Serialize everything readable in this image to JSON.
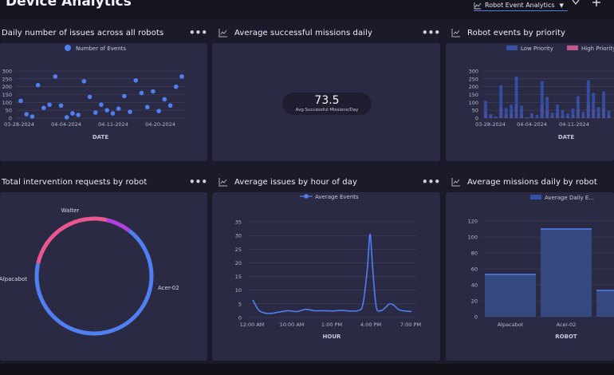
{
  "header": {
    "title": "Device Analytics",
    "dashboard_select": "Robot Event Analytics",
    "icons": {
      "dashboard": "line-chart-icon",
      "chevron": "chevron-down-icon",
      "add": "plus-icon"
    }
  },
  "panels": [
    {
      "id": "daily-issues",
      "title": "Daily number of issues across all robots",
      "more": "•••"
    },
    {
      "id": "avg-missions",
      "title": "Average successful missions daily",
      "more": "•••"
    },
    {
      "id": "events-priority",
      "title": "Robot events by priority",
      "more": "•••"
    },
    {
      "id": "interventions",
      "title": "Total intervention requests by robot",
      "more": "•••"
    },
    {
      "id": "issues-hour",
      "title": "Average issues by hour of day",
      "more": "•••"
    },
    {
      "id": "missions-robot",
      "title": "Average missions daily by robot",
      "more": "•••"
    }
  ],
  "stat": {
    "value": "73.5",
    "caption": "Avg Successful Missions/Day"
  },
  "colors": {
    "accent": "#4f7ff0",
    "low": "#3552a8",
    "high": "#c0588a",
    "pink": "#e8578e",
    "purple": "#b040e0",
    "card": "#2b2a45"
  },
  "chart_data": [
    {
      "id": "daily-issues",
      "type": "scatter",
      "legend": [
        "Number of Events"
      ],
      "legend_position": "top-center",
      "xlabel": "DATE",
      "ylabel": "",
      "xticks": [
        "03-28-2024",
        "04-04-2024",
        "04-11-2024",
        "04-20-2024"
      ],
      "yticks": [
        0,
        50,
        100,
        150,
        200,
        250,
        300
      ],
      "ylim": [
        0,
        300
      ],
      "grid": true,
      "series": [
        {
          "name": "Number of Events",
          "points": [
            [
              0,
              110
            ],
            [
              1,
              25
            ],
            [
              2,
              10
            ],
            [
              3,
              210
            ],
            [
              4,
              65
            ],
            [
              5,
              85
            ],
            [
              6,
              265
            ],
            [
              7,
              80
            ],
            [
              8,
              5
            ],
            [
              9,
              30
            ],
            [
              10,
              20
            ],
            [
              11,
              235
            ],
            [
              12,
              135
            ],
            [
              13,
              35
            ],
            [
              14,
              85
            ],
            [
              15,
              50
            ],
            [
              16,
              30
            ],
            [
              17,
              60
            ],
            [
              18,
              140
            ],
            [
              19,
              40
            ],
            [
              20,
              240
            ],
            [
              21,
              160
            ],
            [
              22,
              70
            ],
            [
              23,
              170
            ],
            [
              24,
              45
            ],
            [
              25,
              120
            ],
            [
              26,
              80
            ],
            [
              27,
              200
            ],
            [
              28,
              265
            ]
          ]
        }
      ]
    },
    {
      "id": "events-priority",
      "type": "bar",
      "legend": [
        "Low Priority",
        "High Priority"
      ],
      "legend_position": "top-center",
      "xlabel": "DATE",
      "xticks": [
        "03-28-2024",
        "04-04-2024",
        "04-11-2024"
      ],
      "yticks": [
        0,
        50,
        100,
        150,
        200,
        250,
        300
      ],
      "ylim": [
        0,
        300
      ],
      "grid": true,
      "series": [
        {
          "name": "Low Priority",
          "values": [
            110,
            25,
            10,
            210,
            65,
            85,
            265,
            80,
            5,
            30,
            20,
            235,
            135,
            35,
            85,
            50,
            30,
            60,
            140,
            40,
            240,
            160,
            70,
            170,
            45
          ]
        },
        {
          "name": "High Priority",
          "values": [
            40,
            10,
            5,
            70,
            20,
            30,
            90,
            25,
            5,
            10,
            5,
            80,
            45,
            10,
            30,
            15,
            10,
            20,
            50,
            10,
            80,
            55,
            25,
            60,
            15
          ]
        }
      ]
    },
    {
      "id": "interventions",
      "type": "pie",
      "donut": true,
      "slices": [
        {
          "label": "Acer-02",
          "value": 68
        },
        {
          "label": "Alpacabot",
          "value": 25
        },
        {
          "label": "Walter",
          "value": 7
        }
      ]
    },
    {
      "id": "issues-hour",
      "type": "line",
      "legend": [
        "Average Events"
      ],
      "legend_position": "top-center",
      "xlabel": "HOUR",
      "xticks": [
        "12:00 AM",
        "10:00 AM",
        "1:00 PM",
        "4:00 PM",
        "7:00 PM"
      ],
      "yticks": [
        0,
        5,
        10,
        15,
        20,
        25,
        30,
        35
      ],
      "ylim": [
        0,
        35
      ],
      "grid": true,
      "series": [
        {
          "name": "Average Events",
          "points": [
            [
              0,
              6.5
            ],
            [
              0.6,
              3
            ],
            [
              1.2,
              1.8
            ],
            [
              2,
              1.5
            ],
            [
              3,
              2
            ],
            [
              4,
              2.5
            ],
            [
              5,
              2.2
            ],
            [
              6,
              3
            ],
            [
              7,
              2.5
            ],
            [
              8,
              2.5
            ],
            [
              9,
              2.4
            ],
            [
              10,
              2.6
            ],
            [
              11,
              2.4
            ],
            [
              12,
              2.6
            ],
            [
              12.5,
              5
            ],
            [
              13,
              18
            ],
            [
              13.3,
              30.5
            ],
            [
              13.6,
              18
            ],
            [
              14,
              4
            ],
            [
              14.5,
              2.5
            ],
            [
              15,
              3.5
            ],
            [
              15.5,
              5
            ],
            [
              16,
              4.5
            ],
            [
              16.5,
              3
            ],
            [
              17,
              2.5
            ],
            [
              18,
              2.2
            ]
          ]
        }
      ]
    },
    {
      "id": "missions-robot",
      "type": "bar",
      "legend": [
        "Average Daily E..."
      ],
      "legend_position": "top-center",
      "xlabel": "ROBOT",
      "categories": [
        "Alpacabot",
        "Acer-02",
        ""
      ],
      "values": [
        53,
        110,
        33
      ],
      "yticks": [
        0,
        20,
        40,
        60,
        80,
        100,
        120
      ],
      "ylim": [
        0,
        120
      ],
      "grid": true
    }
  ]
}
